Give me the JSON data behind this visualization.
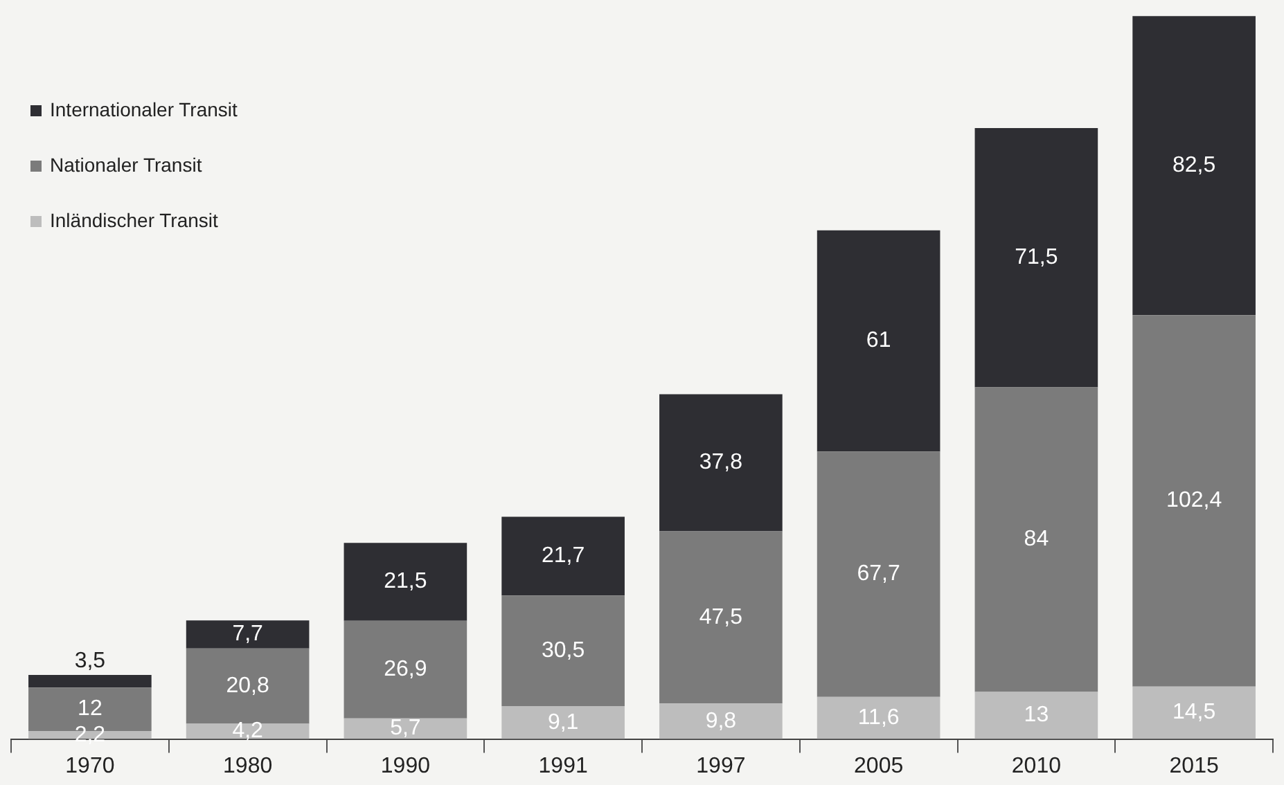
{
  "chart_data": {
    "type": "bar",
    "stacked": true,
    "legend": "top left",
    "grid": false,
    "categories": [
      "1970",
      "1980",
      "1990",
      "1991",
      "1997",
      "2005",
      "2010",
      "2015"
    ],
    "series": [
      {
        "name": "Inländischer Transit",
        "color": "#bdbdbd",
        "values": [
          2.2,
          4.2,
          5.7,
          9.1,
          9.8,
          11.6,
          13,
          14.5
        ],
        "value_labels": [
          "2,2",
          "4,2",
          "5,7",
          "9,1",
          "9,8",
          "11,6",
          "13",
          "14,5"
        ]
      },
      {
        "name": "Nationaler Transit",
        "color": "#7b7b7b",
        "values": [
          12,
          20.8,
          26.9,
          30.5,
          47.5,
          67.7,
          84,
          102.4
        ],
        "value_labels": [
          "12",
          "20,8",
          "26,9",
          "30,5",
          "47,5",
          "67,7",
          "84",
          "102,4"
        ]
      },
      {
        "name": "Internationaler Transit",
        "color": "#2e2e33",
        "values": [
          3.5,
          7.7,
          21.5,
          21.7,
          37.8,
          61,
          71.5,
          82.5
        ],
        "value_labels": [
          "3,5",
          "7,7",
          "21,5",
          "21,7",
          "37,8",
          "61",
          "71,5",
          "82,5"
        ]
      }
    ]
  }
}
